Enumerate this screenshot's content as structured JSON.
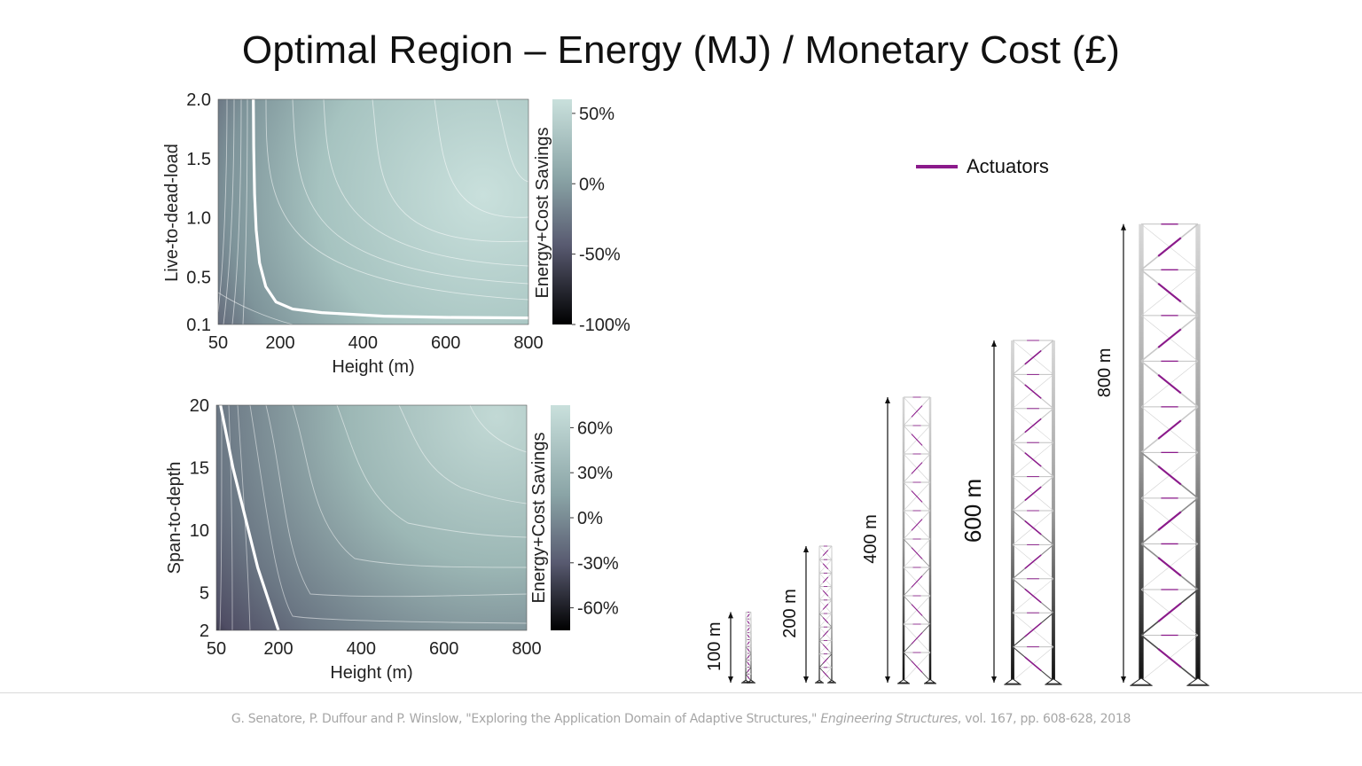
{
  "title": "Optimal Region – Energy (MJ) / Monetary Cost (£)",
  "citation": {
    "prefix": "G. Senatore, P. Duffour and P. Winslow, \"Exploring the Application Domain of Adaptive Structures,\"",
    "journal": "Engineering Structures",
    "suffix": ", vol. 167, pp. 608-628, 2018"
  },
  "colors": {
    "high": "#c9e0dc",
    "mid": "#607a82",
    "low": "#4d4b62",
    "min": "#000000",
    "contour": "#ffffff",
    "actuator": "#8b1a8b",
    "truss": "#cfcfcf"
  },
  "chart_data": [
    {
      "type": "heatmap",
      "xlabel": "Height (m)",
      "ylabel": "Live-to-dead-load",
      "xticks": [
        50,
        200,
        400,
        600,
        800
      ],
      "yticks": [
        0.1,
        0.5,
        1.0,
        1.5,
        2.0
      ],
      "ytick_labels": [
        "0.1",
        "0.5",
        "1.0",
        "1.5",
        "2.0"
      ],
      "xlim": [
        50,
        800
      ],
      "ylim": [
        0.1,
        2.0
      ],
      "colorbar": {
        "label": "Energy+Cost Savings",
        "ticks": [
          50,
          0,
          -50,
          -100
        ],
        "tick_labels": [
          "50%",
          "0%",
          "-50%",
          "-100%"
        ],
        "range": [
          -100,
          60
        ]
      },
      "breakeven_contour": {
        "x": [
          135,
          136,
          138,
          142,
          150,
          165,
          190,
          230,
          300,
          450,
          600,
          800
        ],
        "y": [
          2.0,
          1.6,
          1.2,
          0.9,
          0.62,
          0.42,
          0.29,
          0.23,
          0.2,
          0.17,
          0.16,
          0.155
        ]
      }
    },
    {
      "type": "heatmap",
      "xlabel": "Height (m)",
      "ylabel": "Span-to-depth",
      "xticks": [
        50,
        200,
        400,
        600,
        800
      ],
      "yticks": [
        2,
        5,
        10,
        15,
        20
      ],
      "xlim": [
        50,
        800
      ],
      "ylim": [
        2,
        20
      ],
      "colorbar": {
        "label": "Energy+Cost Savings",
        "ticks": [
          60,
          30,
          0,
          -30,
          -60
        ],
        "tick_labels": [
          "60%",
          "30%",
          "0%",
          "-30%",
          "-60%"
        ],
        "range": [
          -75,
          75
        ]
      },
      "breakeven_contour": {
        "x": [
          60,
          90,
          120,
          150,
          180,
          200
        ],
        "y": [
          20,
          15,
          11,
          7,
          4,
          2
        ]
      }
    },
    {
      "type": "diagram",
      "legend": "Actuators",
      "towers": [
        {
          "height_m": 100,
          "label": "100 m"
        },
        {
          "height_m": 200,
          "label": "200 m"
        },
        {
          "height_m": 400,
          "label": "400 m"
        },
        {
          "height_m": 600,
          "label": "600 m"
        },
        {
          "height_m": 800,
          "label": "800 m"
        }
      ]
    }
  ]
}
